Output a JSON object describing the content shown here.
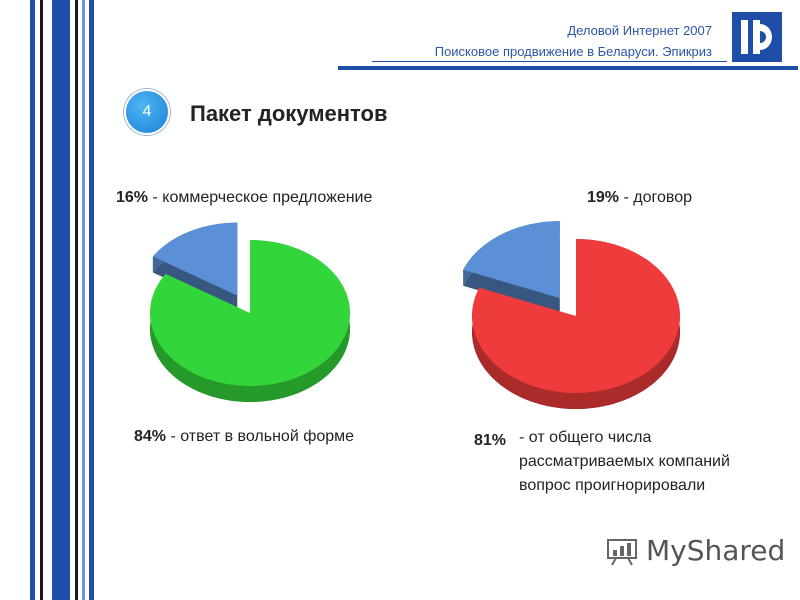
{
  "header": {
    "line1": "Деловой Интернет 2007",
    "line2": "Поисковое продвижение в Беларуси. Эпикриз"
  },
  "slide": {
    "number": "4",
    "title": "Пакет документов"
  },
  "labels": {
    "left_top_pct": "16%",
    "left_top_text": "- коммерческое предложение",
    "left_bottom_pct": "84%",
    "left_bottom_text": "- ответ в вольной форме",
    "right_top_pct": "19%",
    "right_top_text": "- договор",
    "right_bottom_pct": "81%",
    "right_bottom_text": "- от общего числа рассматриваемых компаний вопрос проигнорировали"
  },
  "watermark": "MyShared",
  "colors": {
    "accent_blue": "#1f4ea8",
    "slice_blue": "#5b8fd6",
    "green": "#33d63a",
    "red": "#ee3b3b"
  },
  "chart_data": [
    {
      "type": "pie",
      "slices": [
        {
          "label": "- коммерческое предложение",
          "value": 16,
          "color": "#5b8fd6"
        },
        {
          "label": "- ответ в вольной форме",
          "value": 84,
          "color": "#33d63a"
        }
      ]
    },
    {
      "type": "pie",
      "slices": [
        {
          "label": "- договор",
          "value": 19,
          "color": "#5b8fd6"
        },
        {
          "label": "- от общего числа рассматриваемых компаний вопрос проигнорировали",
          "value": 81,
          "color": "#ee3b3b"
        }
      ]
    }
  ]
}
